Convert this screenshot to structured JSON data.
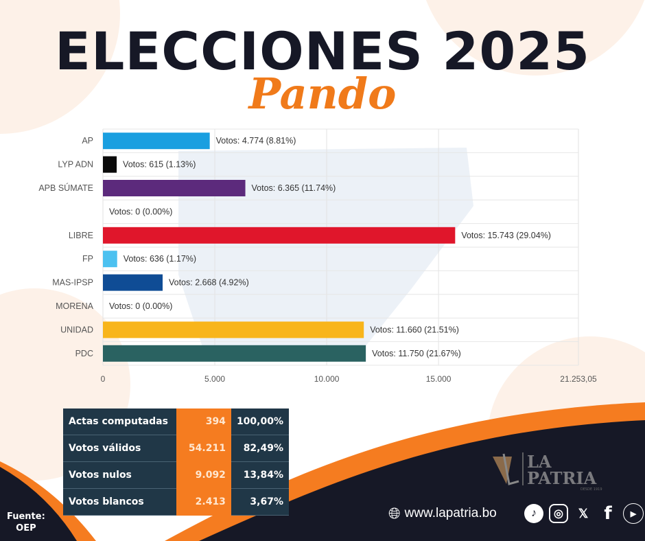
{
  "header": {
    "title": "ELECCIONES 2025",
    "subtitle": "Pando"
  },
  "chart_data": {
    "type": "bar",
    "orientation": "horizontal",
    "categories": [
      "AP",
      "LYP ADN",
      "APB SÚMATE",
      "",
      "LIBRE",
      "FP",
      "MAS-IPSP",
      "MORENA",
      "UNIDAD",
      "PDC"
    ],
    "values": [
      4774,
      615,
      6365,
      0,
      15743,
      636,
      2668,
      0,
      11660,
      11750
    ],
    "data_labels": [
      "Votos: 4.774 (8.81%)",
      "Votos: 615 (1.13%)",
      "Votos: 6.365 (11.74%)",
      "Votos: 0 (0.00%)",
      "Votos: 15.743 (29.04%)",
      "Votos: 636 (1.17%)",
      "Votos: 2.668 (4.92%)",
      "Votos: 0 (0.00%)",
      "Votos: 11.660 (21.51%)",
      "Votos: 11.750 (21.67%)"
    ],
    "colors": [
      "#1a9fe0",
      "#0a0a0a",
      "#5c2a7c",
      "#cccccc",
      "#e0162b",
      "#4cc1f0",
      "#0f4c95",
      "#cccccc",
      "#f8b51b",
      "#2a6261"
    ],
    "xlim": [
      0,
      21253.05
    ],
    "xticks": [
      0,
      5000,
      10000,
      15000,
      21253.05
    ],
    "xtick_labels": [
      "0",
      "5.000",
      "10.000",
      "15.000",
      "21.253,05"
    ],
    "grid": true
  },
  "summary": {
    "rows": [
      {
        "label": "Actas computadas",
        "value": "394",
        "pct": "100,00%"
      },
      {
        "label": "Votos válidos",
        "value": "54.211",
        "pct": "82,49%"
      },
      {
        "label": "Votos nulos",
        "value": "9.092",
        "pct": "13,84%"
      },
      {
        "label": "Votos blancos",
        "value": "2.413",
        "pct": "3,67%"
      }
    ]
  },
  "footer": {
    "source_label": "Fuente:",
    "source": "OEP",
    "website": "www.lapatria.bo",
    "logo": {
      "line1": "LA",
      "line2": "PATRIA",
      "tagline": "DESDE 1919"
    },
    "social": [
      "tiktok-icon",
      "instagram-icon",
      "x-icon",
      "facebook-icon",
      "youtube-icon"
    ]
  },
  "theme": {
    "dark": "#161826",
    "orange": "#f57c20",
    "peach": "#fdeee3",
    "table": "#203747"
  }
}
